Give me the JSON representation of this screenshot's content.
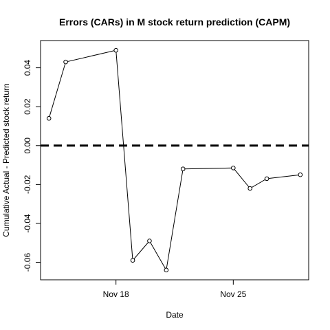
{
  "chart_data": {
    "type": "line",
    "title": "Errors (CARs) in M stock return prediction (CAPM)",
    "xlabel": "Date",
    "ylabel": "Cumulative Actual - Predicted stock return",
    "x_day_offsets": [
      -4,
      -3,
      0,
      1,
      2,
      3,
      4,
      7,
      8,
      9,
      11
    ],
    "values": [
      0.014,
      0.043,
      0.049,
      -0.059,
      -0.049,
      -0.064,
      -0.012,
      -0.0115,
      -0.022,
      -0.017,
      -0.015
    ],
    "x_ticks": [
      {
        "offset": 0,
        "label": "Nov 18"
      },
      {
        "offset": 7,
        "label": "Nov 25"
      }
    ],
    "y_ticks": [
      -0.06,
      -0.04,
      -0.02,
      0.0,
      0.02,
      0.04
    ],
    "y_tick_labels": [
      "-0.06",
      "-0.04",
      "-0.02",
      "0.00",
      "0.02",
      "0.04"
    ],
    "xlim": [
      -4.5,
      11.5
    ],
    "ylim": [
      -0.069,
      0.054
    ],
    "reference_line": {
      "y": 0.0,
      "style": "dashed"
    },
    "grid": false,
    "marker": "open-circle"
  }
}
